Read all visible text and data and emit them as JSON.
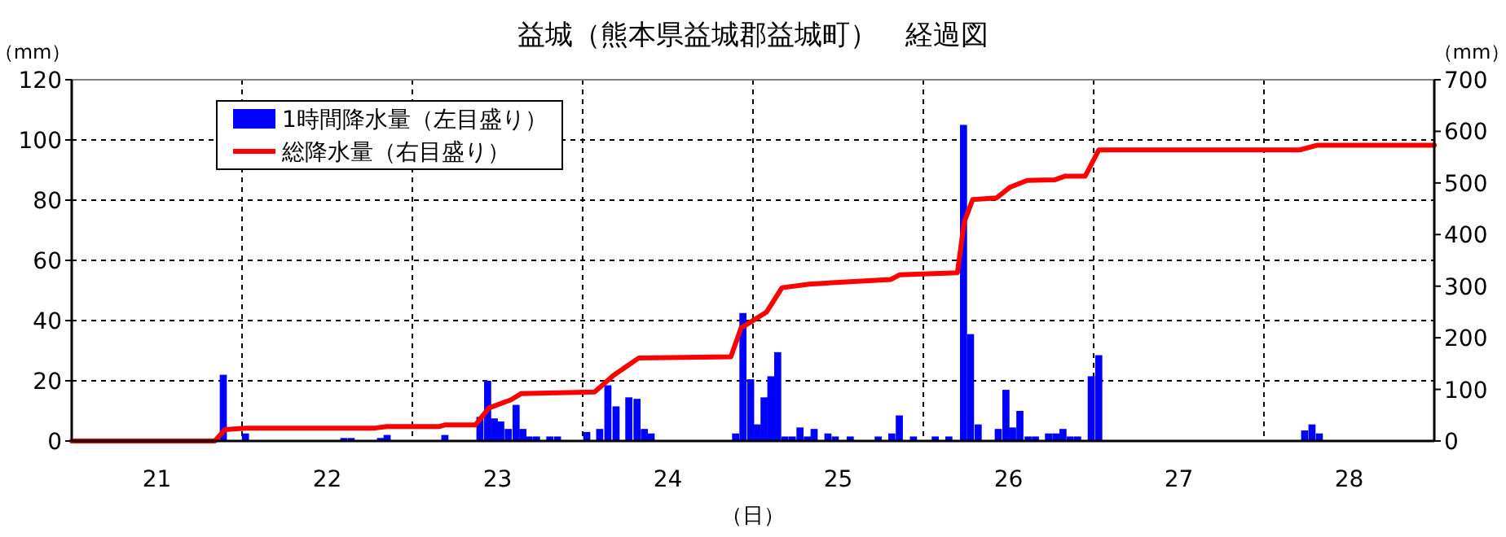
{
  "chart_data": {
    "type": "bar",
    "title": "益城（熊本県益城郡益城町）　経過図",
    "xlabel": "（日）",
    "ylabel": "（mm）",
    "y2label": "（mm）",
    "xlim": [
      21,
      29
    ],
    "xticks": [
      {
        "value": 21.5,
        "label": "21"
      },
      {
        "value": 22,
        "label": null
      },
      {
        "value": 22.5,
        "label": "22"
      },
      {
        "value": 23,
        "label": null
      },
      {
        "value": 23.5,
        "label": "23"
      },
      {
        "value": 24,
        "label": null
      },
      {
        "value": 24.5,
        "label": "24"
      },
      {
        "value": 25,
        "label": null
      },
      {
        "value": 25.5,
        "label": "25"
      },
      {
        "value": 26,
        "label": null
      },
      {
        "value": 26.5,
        "label": "26"
      },
      {
        "value": 27,
        "label": null
      },
      {
        "value": 27.5,
        "label": "27"
      },
      {
        "value": 28,
        "label": null
      },
      {
        "value": 28.5,
        "label": "28"
      }
    ],
    "ylim": [
      0,
      120
    ],
    "yticks": [
      0,
      20,
      40,
      60,
      80,
      100,
      120
    ],
    "y2lim": [
      0,
      700
    ],
    "y2ticks": [
      0,
      100,
      200,
      300,
      400,
      500,
      600,
      700
    ],
    "grid": true,
    "legend": "top left",
    "series": [
      {
        "name": "1時間降水量（左目盛り）",
        "color": "#0000ff",
        "x": [
          21.89,
          22.02,
          22.598,
          22.641,
          22.813,
          22.852,
          23.191,
          23.397,
          23.442,
          23.481,
          23.519,
          23.563,
          23.609,
          23.649,
          23.686,
          23.729,
          23.807,
          23.852,
          24.024,
          24.1,
          24.148,
          24.196,
          24.271,
          24.319,
          24.362,
          24.402,
          24.898,
          24.941,
          24.986,
          25.026,
          25.065,
          25.105,
          25.145,
          25.188,
          25.231,
          25.276,
          25.319,
          25.359,
          25.44,
          25.483,
          25.571,
          25.735,
          25.815,
          25.859,
          25.942,
          26.07,
          26.15,
          26.236,
          26.277,
          26.322,
          26.44,
          26.485,
          26.524,
          26.567,
          26.615,
          26.658,
          26.735,
          26.778,
          26.82,
          26.863,
          26.906,
          26.986,
          27.03,
          28.239,
          28.282,
          28.325
        ],
        "values": [
          22,
          2.5,
          1,
          1,
          1,
          2,
          2,
          8,
          20,
          7.5,
          6.5,
          4,
          12,
          4,
          1.5,
          1.5,
          1.5,
          1.5,
          3,
          4,
          18.5,
          11.5,
          14.5,
          14,
          4,
          2.5,
          2.5,
          42.5,
          20.5,
          5.5,
          14.5,
          21.5,
          29.5,
          1.5,
          1.5,
          4.5,
          1.5,
          4,
          2.5,
          1.5,
          1.5,
          1.5,
          2.5,
          8.5,
          1.5,
          1.5,
          1.5,
          105,
          35.5,
          5.5,
          4,
          17,
          4.5,
          10,
          1.5,
          1.5,
          2.5,
          2.5,
          4,
          1.5,
          1.5,
          21.5,
          28.5,
          3.5,
          5.5,
          2.5
        ]
      },
      {
        "name": "総降水量（右目盛り）",
        "type": "line",
        "color": "#ff0000",
        "axis": "y2",
        "x": [
          21,
          21.84,
          21.9,
          22.02,
          22.78,
          22.85,
          23.16,
          23.19,
          23.37,
          23.45,
          23.58,
          23.64,
          24.07,
          24.18,
          24.33,
          24.87,
          24.93,
          25.08,
          25.17,
          25.33,
          25.81,
          25.86,
          26.2,
          26.24,
          26.29,
          26.43,
          26.51,
          26.61,
          26.77,
          26.83,
          26.95,
          27.03,
          28.21,
          28.31,
          29
        ],
        "values": [
          0,
          0,
          22,
          25,
          25,
          28,
          28,
          31,
          31,
          64,
          80,
          92,
          95,
          127,
          161,
          163,
          219,
          250,
          297,
          304,
          313,
          322,
          326,
          424,
          468,
          471,
          492,
          505,
          506,
          513,
          513,
          564,
          564,
          573,
          573
        ]
      }
    ]
  }
}
